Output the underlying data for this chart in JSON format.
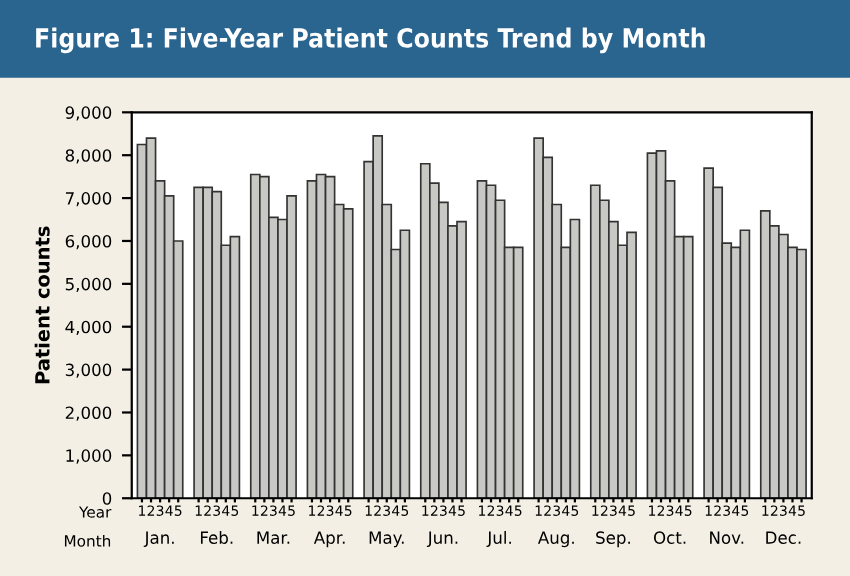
{
  "chart_data": {
    "type": "bar",
    "title": "Figure 1: Five-Year Patient Counts Trend by Month",
    "ylabel": "Patient counts",
    "categories": [
      "Jan.",
      "Feb.",
      "Mar.",
      "Apr.",
      "May.",
      "Jun.",
      "Jul.",
      "Aug.",
      "Sep.",
      "Oct.",
      "Nov.",
      "Dec."
    ],
    "series": [
      {
        "name": "1",
        "color": "#c8c8c4",
        "values": [
          8250,
          7250,
          7550,
          7400,
          7850,
          7800,
          7400,
          8400,
          7300,
          8050,
          7700,
          6700
        ]
      },
      {
        "name": "2",
        "color": "#c8c8c4",
        "values": [
          8400,
          7250,
          7500,
          7550,
          8450,
          7350,
          7300,
          7950,
          6950,
          8100,
          7250,
          6350
        ]
      },
      {
        "name": "3",
        "color": "#c8c8c4",
        "values": [
          7400,
          7150,
          6550,
          7500,
          6850,
          6900,
          6950,
          6850,
          6450,
          7400,
          5950,
          6150
        ]
      },
      {
        "name": "4",
        "color": "#c8c8c4",
        "values": [
          7050,
          5900,
          6500,
          6850,
          5800,
          6350,
          5850,
          5850,
          5900,
          6100,
          5850,
          5850
        ]
      },
      {
        "name": "5",
        "color": "#c8c8c4",
        "values": [
          6000,
          6100,
          7050,
          6750,
          6250,
          6450,
          5850,
          6500,
          6200,
          6100,
          6250,
          5800
        ]
      }
    ],
    "annotations": [
      "Year",
      "Month"
    ],
    "ylim": [
      0,
      9000
    ],
    "yticks": [
      0,
      {
        "value": 1000,
        "label": "1,000"
      },
      {
        "value": 2000,
        "label": "2,000"
      },
      {
        "value": 3000,
        "label": "3,000"
      },
      {
        "value": 4000,
        "label": "4,000"
      },
      {
        "value": 5000,
        "label": "5,000"
      },
      {
        "value": 6000,
        "label": "6,000"
      },
      {
        "value": 7000,
        "label": "7,000"
      },
      {
        "value": 8000,
        "label": "8,000"
      },
      {
        "value": 9000,
        "label": "9,000"
      }
    ],
    "grid": false,
    "legend": false
  }
}
